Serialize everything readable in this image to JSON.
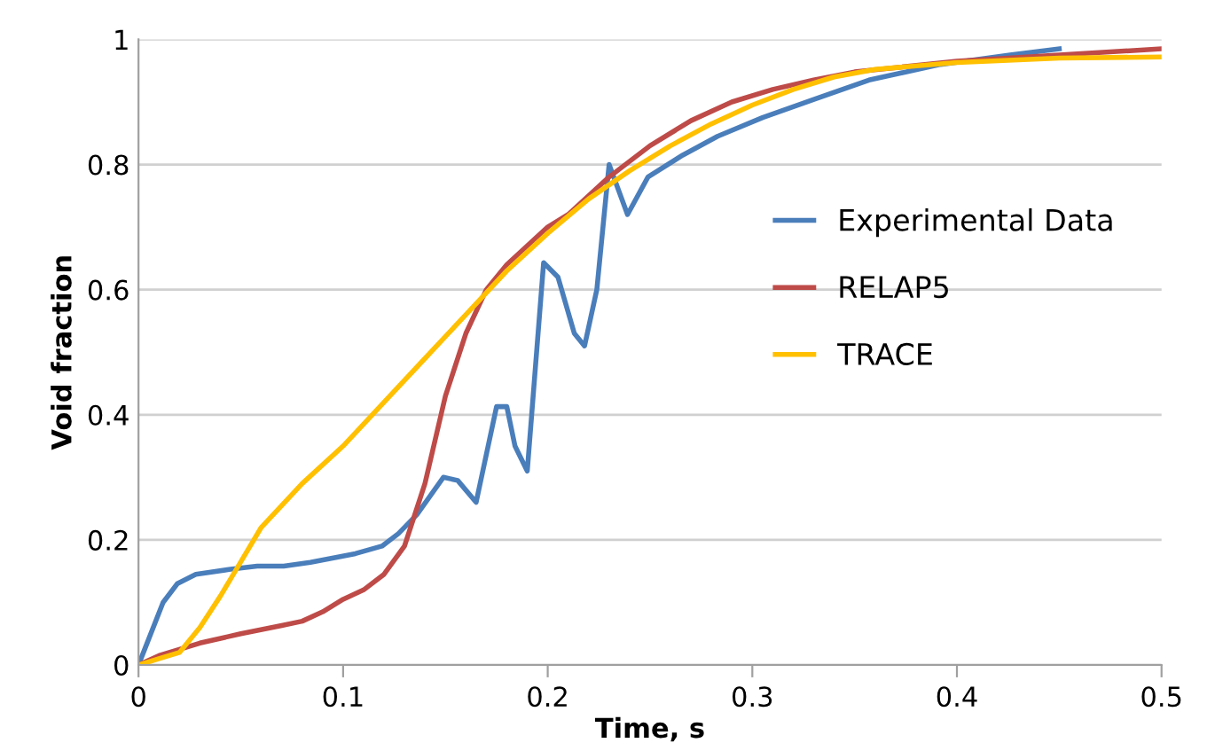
{
  "chart_data": {
    "type": "line",
    "xlabel": "Time, s",
    "ylabel": "Void fraction",
    "xlim": [
      0,
      0.5
    ],
    "xticks": [
      0,
      0.1,
      0.2,
      0.3,
      0.4,
      0.5
    ],
    "ylim": [
      0,
      1
    ],
    "yticks": [
      0,
      0.2,
      0.4,
      0.6,
      0.8,
      1
    ],
    "grid": "y",
    "legend": "right",
    "marker": "none",
    "line_style": "solid",
    "series": [
      {
        "name": "Experimental Data",
        "color": "#4a7ebb",
        "x": [
          0,
          0.003,
          0.012,
          0.019,
          0.028,
          0.045,
          0.058,
          0.071,
          0.084,
          0.106,
          0.119,
          0.127,
          0.136,
          0.149,
          0.156,
          0.165,
          0.175,
          0.18,
          0.184,
          0.19,
          0.198,
          0.205,
          0.213,
          0.218,
          0.224,
          0.23,
          0.239,
          0.249,
          0.266,
          0.283,
          0.305,
          0.331,
          0.357,
          0.392,
          0.426,
          0.45
        ],
        "values": [
          0,
          0.025,
          0.1,
          0.13,
          0.145,
          0.153,
          0.158,
          0.158,
          0.164,
          0.178,
          0.19,
          0.21,
          0.24,
          0.3,
          0.295,
          0.26,
          0.413,
          0.413,
          0.35,
          0.31,
          0.643,
          0.62,
          0.53,
          0.51,
          0.6,
          0.8,
          0.72,
          0.78,
          0.815,
          0.845,
          0.875,
          0.905,
          0.935,
          0.96,
          0.975,
          0.985
        ]
      },
      {
        "name": "RELAP5",
        "color": "#be4b48",
        "x": [
          0,
          0.01,
          0.02,
          0.03,
          0.05,
          0.07,
          0.08,
          0.09,
          0.1,
          0.11,
          0.12,
          0.13,
          0.14,
          0.15,
          0.16,
          0.17,
          0.18,
          0.19,
          0.2,
          0.21,
          0.22,
          0.23,
          0.25,
          0.27,
          0.29,
          0.31,
          0.33,
          0.35,
          0.4,
          0.45,
          0.5
        ],
        "values": [
          0,
          0.015,
          0.025,
          0.035,
          0.05,
          0.063,
          0.07,
          0.085,
          0.105,
          0.12,
          0.145,
          0.19,
          0.29,
          0.43,
          0.53,
          0.6,
          0.64,
          0.67,
          0.7,
          0.72,
          0.75,
          0.78,
          0.83,
          0.87,
          0.9,
          0.92,
          0.935,
          0.948,
          0.965,
          0.975,
          0.985
        ]
      },
      {
        "name": "TRACE",
        "color": "#ffc000",
        "x": [
          0,
          0.01,
          0.02,
          0.03,
          0.04,
          0.05,
          0.06,
          0.08,
          0.1,
          0.12,
          0.14,
          0.16,
          0.18,
          0.2,
          0.22,
          0.24,
          0.26,
          0.28,
          0.3,
          0.32,
          0.34,
          0.36,
          0.4,
          0.45,
          0.5
        ],
        "values": [
          0,
          0.01,
          0.02,
          0.06,
          0.11,
          0.165,
          0.22,
          0.29,
          0.35,
          0.42,
          0.49,
          0.56,
          0.63,
          0.69,
          0.745,
          0.79,
          0.83,
          0.865,
          0.895,
          0.92,
          0.94,
          0.952,
          0.963,
          0.97,
          0.972
        ]
      }
    ]
  }
}
